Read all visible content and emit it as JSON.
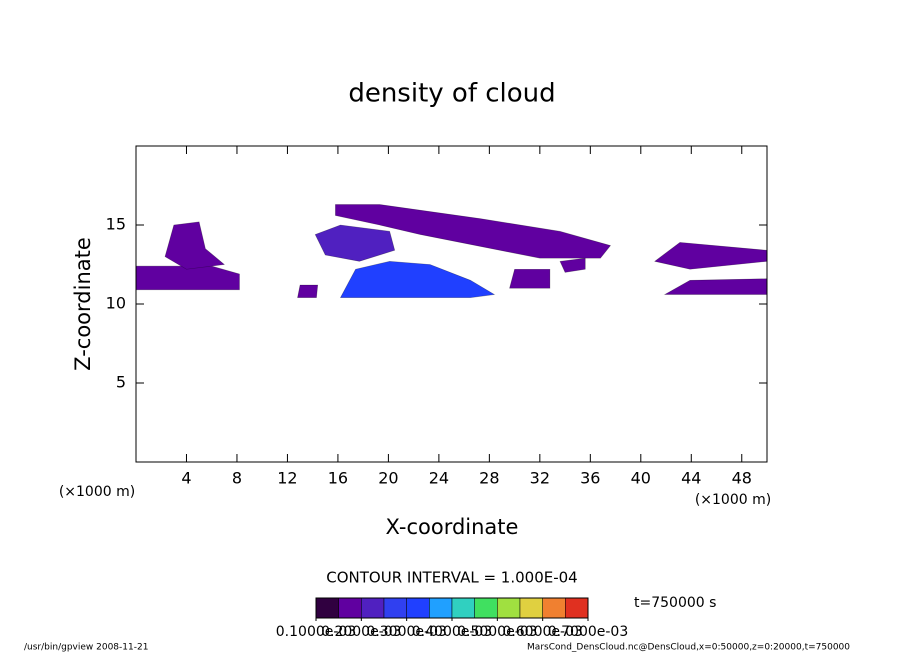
{
  "chart_data": {
    "type": "contour",
    "title": "density of cloud",
    "x_label": "X-coordinate",
    "y_label": "Z-coordinate",
    "x_unit": "(×1000 m)",
    "x_unit_right": "(×1000 m)",
    "xlim": [
      0,
      50
    ],
    "ylim": [
      0,
      20
    ],
    "xticks": [
      4,
      8,
      12,
      16,
      20,
      24,
      28,
      32,
      36,
      40,
      44,
      48
    ],
    "yticks": [
      5,
      10,
      15
    ],
    "contour_interval": "CONTOUR INTERVAL = 1.000E-04",
    "time_label": "t=750000 s",
    "colorbar": {
      "lim": [
        0.0001,
        0.0007
      ],
      "colors": [
        "#300040",
        "#6000a0",
        "#5020c0",
        "#3040f0",
        "#2040ff",
        "#20a0ff",
        "#30d0c0",
        "#40e060",
        "#a0e040",
        "#e0d040",
        "#f08030",
        "#e03020"
      ],
      "ticks": [
        {
          "value": 0.0001,
          "label": "0.1000e-03"
        },
        {
          "value": 0.0002,
          "label": "0.2000e-03"
        },
        {
          "value": 0.0003,
          "label": "0.3000e-03"
        },
        {
          "value": 0.0004,
          "label": "0.4000e-03"
        },
        {
          "value": 0.0005,
          "label": "0.5000e-03"
        },
        {
          "value": 0.0006,
          "label": "0.6000e-03"
        },
        {
          "value": 0.0007,
          "label": "0.7000e-03"
        }
      ]
    },
    "regions": [
      {
        "value": 0.00016,
        "x": [
          0,
          8.2,
          8.2,
          6,
          0
        ],
        "z": [
          10.9,
          10.9,
          11.9,
          12.4,
          12.4
        ]
      },
      {
        "value": 0.00016,
        "x": [
          2.3,
          3,
          5,
          5.5,
          7,
          4
        ],
        "z": [
          13,
          15,
          15.2,
          13.5,
          12.5,
          12.2
        ]
      },
      {
        "value": 0.00016,
        "x": [
          15.8,
          19.3,
          27.3,
          33.6,
          37.6,
          36.8,
          32,
          22.5,
          19.3,
          15.8
        ],
        "z": [
          16.3,
          16.3,
          15.4,
          14.6,
          13.7,
          12.9,
          12.9,
          14.4,
          15.0,
          15.6
        ]
      },
      {
        "value": 0.00022,
        "x": [
          14.2,
          16.2,
          20.1,
          20.5,
          17.7,
          15
        ],
        "z": [
          14.4,
          15.0,
          14.6,
          13.4,
          12.7,
          13.1
        ]
      },
      {
        "value": 0.00032,
        "x": [
          16.2,
          17.4,
          20.1,
          23.3,
          26.5,
          28.4,
          26.5
        ],
        "z": [
          10.4,
          12.2,
          12.7,
          12.5,
          11.5,
          10.6,
          10.4
        ]
      },
      {
        "value": 0.00016,
        "x": [
          29.6,
          30,
          32.8,
          32.8
        ],
        "z": [
          11,
          12.2,
          12.2,
          11
        ]
      },
      {
        "value": 0.00016,
        "x": [
          33.6,
          35.6,
          35.6,
          34
        ],
        "z": [
          12.7,
          12.9,
          12.2,
          12
        ]
      },
      {
        "value": 0.00016,
        "x": [
          41.9,
          43.9,
          50,
          50
        ],
        "z": [
          10.6,
          11.5,
          11.6,
          10.6
        ]
      },
      {
        "value": 0.00016,
        "x": [
          41.1,
          43.1,
          50,
          50,
          43.9
        ],
        "z": [
          12.7,
          13.9,
          13.4,
          12.7,
          12.2
        ]
      },
      {
        "value": 0.00016,
        "x": [
          12.8,
          13,
          14.4,
          14.3
        ],
        "z": [
          10.4,
          11.2,
          11.2,
          10.4
        ]
      }
    ]
  },
  "footer": {
    "left": "/usr/bin/gpview  2008-11-21",
    "right": "MarsCond_DensCloud.nc@DensCloud,x=0:50000,z=0:20000,t=750000"
  }
}
